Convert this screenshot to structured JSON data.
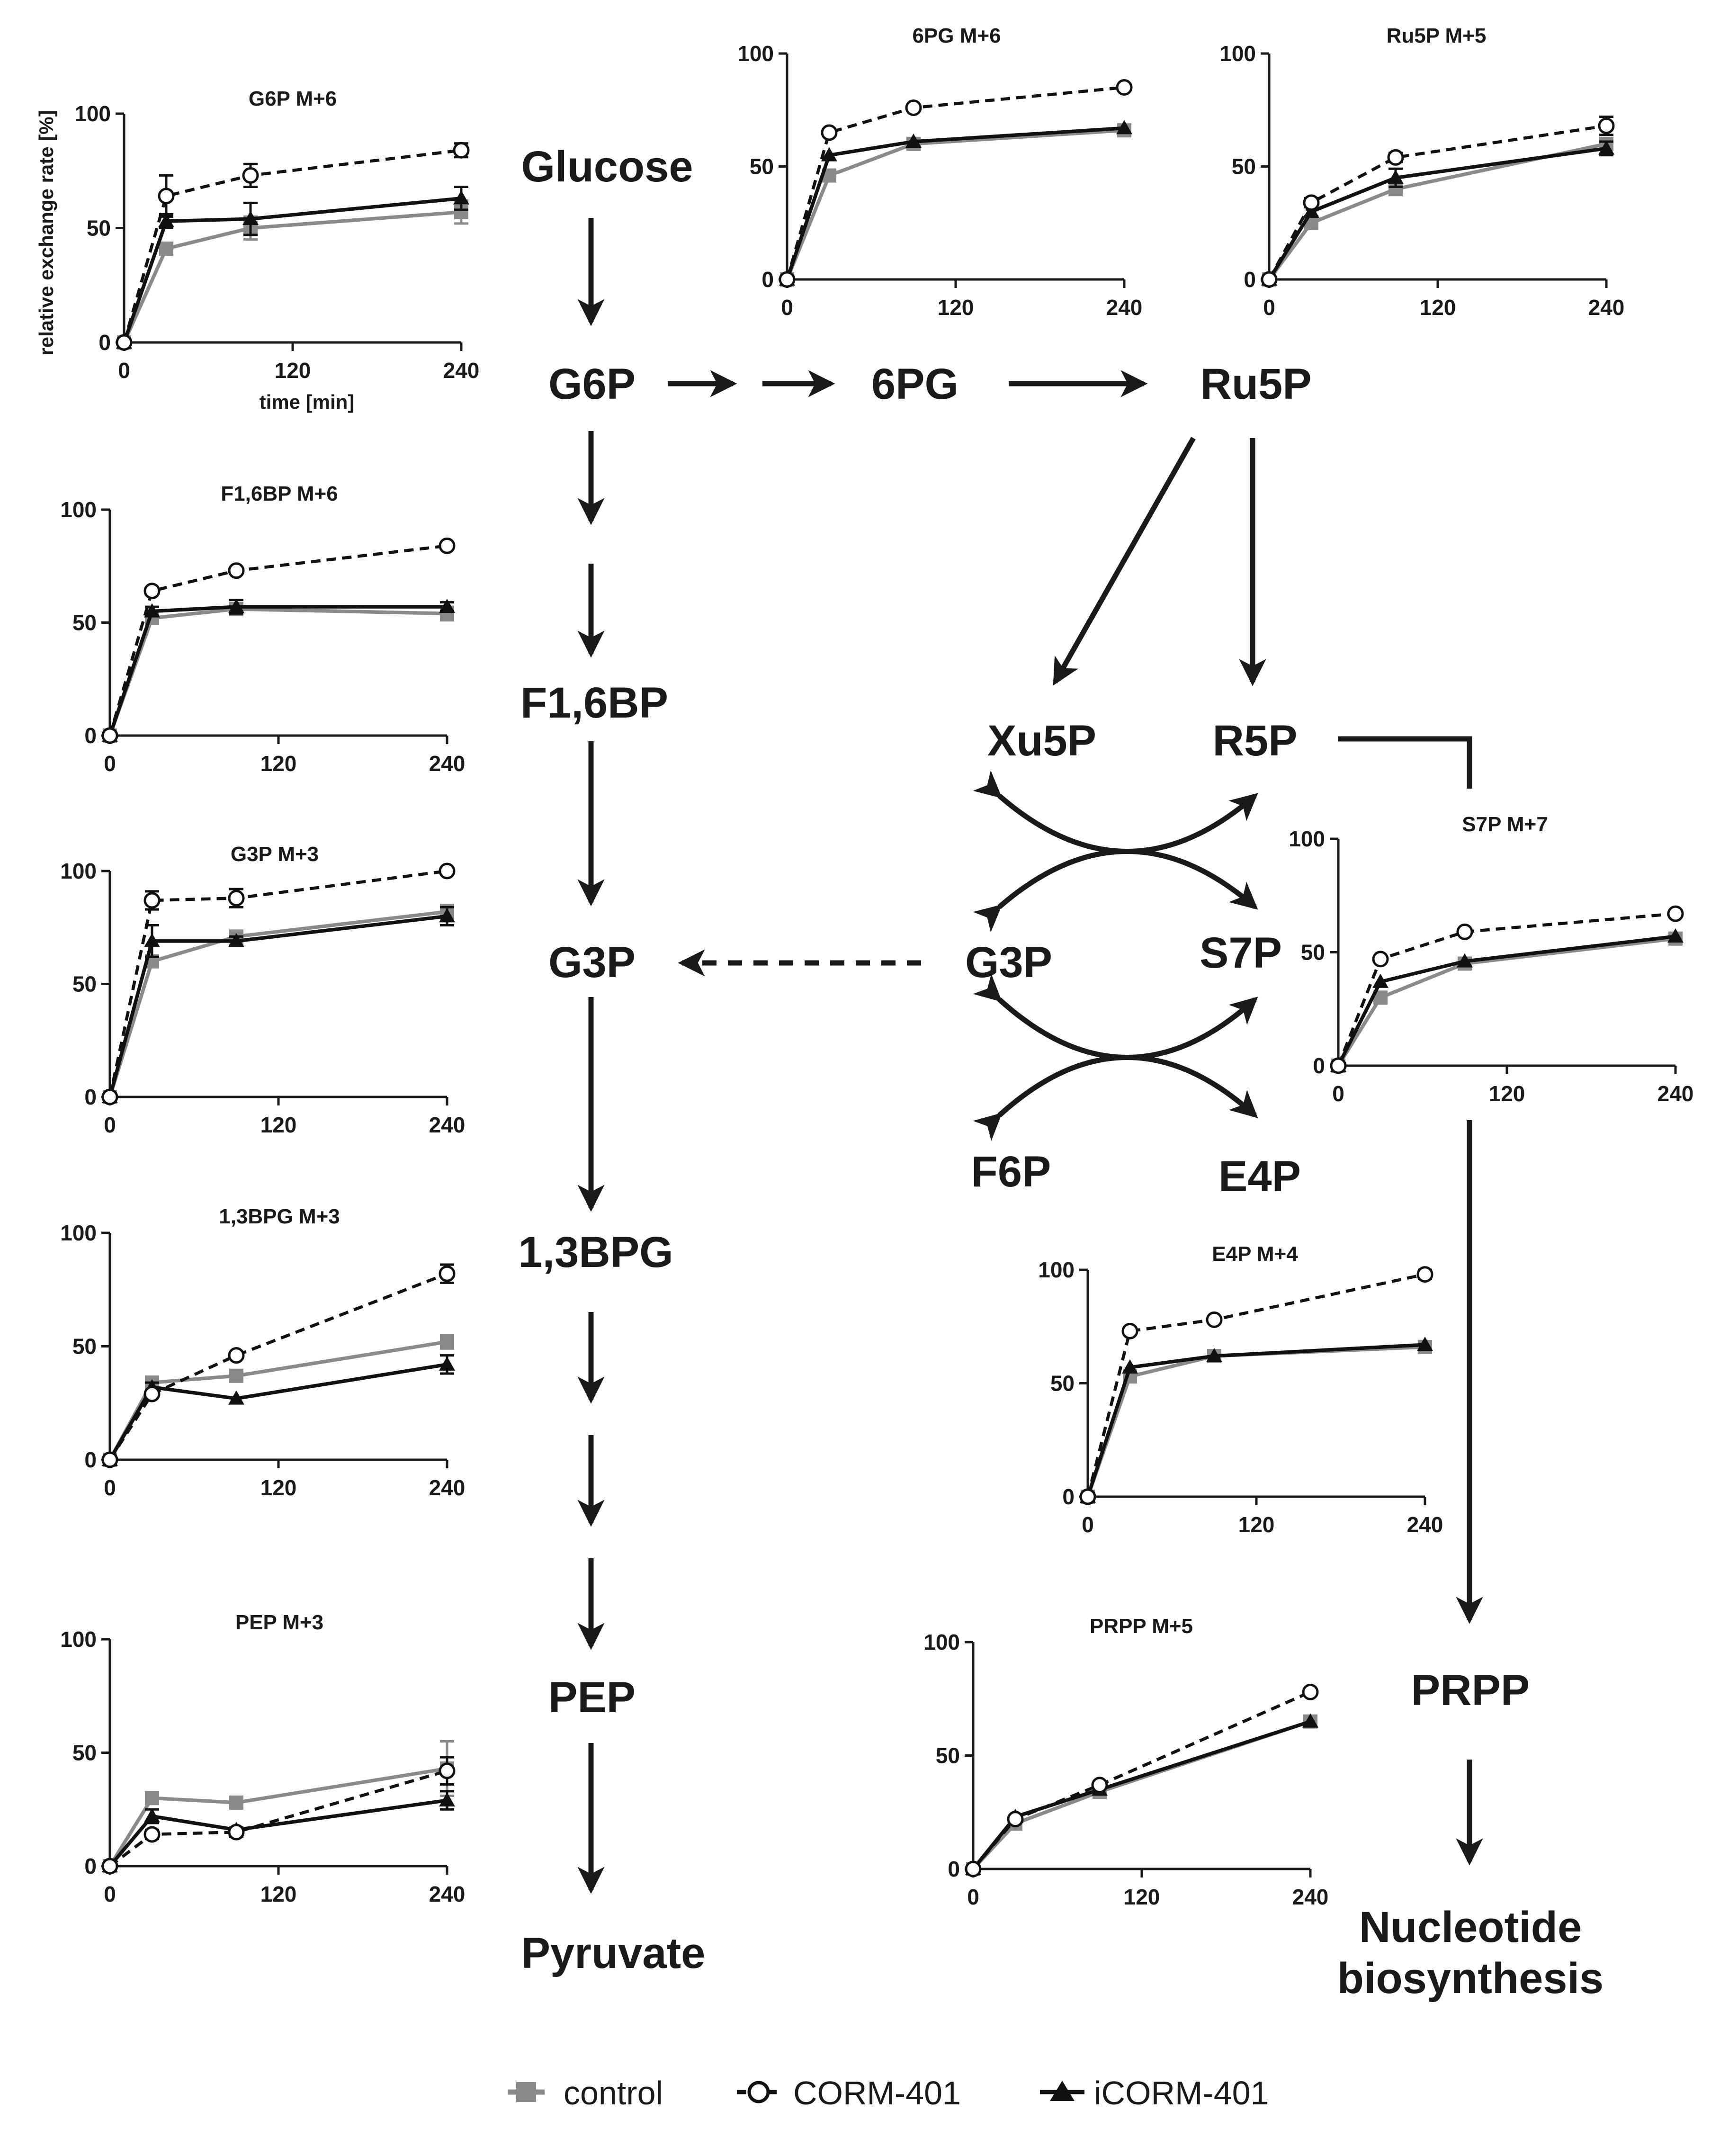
{
  "metabolites": {
    "glucose": "Glucose",
    "g6p": "G6P",
    "pg6": "6PG",
    "ru5p": "Ru5P",
    "f16bp": "F1,6BP",
    "xu5p": "Xu5P",
    "r5p": "R5P",
    "g3p": "G3P",
    "g3p_ppp": "G3P",
    "s7p": "S7P",
    "f6p": "F6P",
    "e4p": "E4P",
    "bpg13": "1,3BPG",
    "pep": "PEP",
    "prpp": "PRPP",
    "pyruvate": "Pyruvate",
    "nucleotide_1": "Nucleotide",
    "nucleotide_2": "biosynthesis"
  },
  "legend": [
    {
      "name": "control",
      "marker": "square",
      "color": "#8a8a8a",
      "dash": "solid"
    },
    {
      "name": "CORM-401",
      "marker": "circle-open",
      "color": "#111111",
      "dash": "dashed"
    },
    {
      "name": "iCORM-401",
      "marker": "triangle",
      "color": "#111111",
      "dash": "solid"
    }
  ],
  "colors": {
    "control": "#8a8a8a",
    "corm": "#111111",
    "icorm": "#111111",
    "ink": "#1a1a1a"
  },
  "chart_data": [
    {
      "id": "g6p",
      "type": "line",
      "title": "G6P  M+6",
      "xlabel": "time [min]",
      "ylabel": "relative exchange rate [%]",
      "x": [
        0,
        30,
        90,
        240
      ],
      "xticks": [
        0,
        120,
        240
      ],
      "yticks": [
        0,
        50,
        100
      ],
      "xlim": [
        0,
        240
      ],
      "ylim": [
        0,
        100
      ],
      "grid": false,
      "series": [
        {
          "name": "control",
          "values": [
            0,
            41,
            50,
            57
          ],
          "errors": [
            0,
            2,
            5,
            5
          ]
        },
        {
          "name": "CORM-401",
          "values": [
            0,
            64,
            73,
            84
          ],
          "errors": [
            0,
            9,
            5,
            3
          ]
        },
        {
          "name": "iCORM-401",
          "values": [
            0,
            53,
            54,
            63
          ],
          "errors": [
            0,
            3,
            7,
            5
          ]
        }
      ]
    },
    {
      "id": "pg6",
      "type": "line",
      "title": "6PG  M+6",
      "x": [
        0,
        30,
        90,
        240
      ],
      "xticks": [
        0,
        120,
        240
      ],
      "yticks": [
        0,
        50,
        100
      ],
      "xlim": [
        0,
        240
      ],
      "ylim": [
        0,
        100
      ],
      "grid": false,
      "series": [
        {
          "name": "control",
          "values": [
            0,
            46,
            60,
            66
          ],
          "errors": [
            0,
            1,
            1,
            1
          ]
        },
        {
          "name": "CORM-401",
          "values": [
            0,
            65,
            76,
            85
          ],
          "errors": [
            0,
            1,
            1,
            1
          ]
        },
        {
          "name": "iCORM-401",
          "values": [
            0,
            55,
            61,
            67
          ],
          "errors": [
            0,
            1,
            1,
            1
          ]
        }
      ]
    },
    {
      "id": "ru5p",
      "type": "line",
      "title": "Ru5P  M+5",
      "x": [
        0,
        30,
        90,
        240
      ],
      "xticks": [
        0,
        120,
        240
      ],
      "yticks": [
        0,
        50,
        100
      ],
      "xlim": [
        0,
        240
      ],
      "ylim": [
        0,
        100
      ],
      "grid": false,
      "series": [
        {
          "name": "control",
          "values": [
            0,
            25,
            40,
            60
          ],
          "errors": [
            0,
            1,
            2,
            2
          ]
        },
        {
          "name": "CORM-401",
          "values": [
            0,
            34,
            54,
            68
          ],
          "errors": [
            0,
            2,
            2,
            4
          ]
        },
        {
          "name": "iCORM-401",
          "values": [
            0,
            30,
            45,
            58
          ],
          "errors": [
            0,
            2,
            4,
            3
          ]
        }
      ]
    },
    {
      "id": "f16bp",
      "type": "line",
      "title": "F1,6BP  M+6",
      "x": [
        0,
        30,
        90,
        240
      ],
      "xticks": [
        0,
        120,
        240
      ],
      "yticks": [
        0,
        50,
        100
      ],
      "xlim": [
        0,
        240
      ],
      "ylim": [
        0,
        100
      ],
      "grid": false,
      "series": [
        {
          "name": "control",
          "values": [
            0,
            52,
            56,
            54
          ],
          "errors": [
            0,
            2,
            2,
            3
          ]
        },
        {
          "name": "CORM-401",
          "values": [
            0,
            64,
            73,
            84
          ],
          "errors": [
            0,
            1,
            1,
            1
          ]
        },
        {
          "name": "iCORM-401",
          "values": [
            0,
            55,
            57,
            57
          ],
          "errors": [
            0,
            2,
            3,
            2
          ]
        }
      ]
    },
    {
      "id": "g3p",
      "type": "line",
      "title": "G3P  M+3",
      "x": [
        0,
        30,
        90,
        240
      ],
      "xticks": [
        0,
        120,
        240
      ],
      "yticks": [
        0,
        50,
        100
      ],
      "xlim": [
        0,
        240
      ],
      "ylim": [
        0,
        100
      ],
      "grid": false,
      "series": [
        {
          "name": "control",
          "values": [
            0,
            60,
            71,
            82
          ],
          "errors": [
            0,
            2,
            2,
            3
          ]
        },
        {
          "name": "CORM-401",
          "values": [
            0,
            87,
            88,
            100
          ],
          "errors": [
            0,
            4,
            4,
            1
          ]
        },
        {
          "name": "iCORM-401",
          "values": [
            0,
            69,
            69,
            80
          ],
          "errors": [
            0,
            7,
            2,
            4
          ]
        }
      ]
    },
    {
      "id": "bpg13",
      "type": "line",
      "title": "1,3BPG M+3",
      "x": [
        0,
        30,
        90,
        240
      ],
      "xticks": [
        0,
        120,
        240
      ],
      "yticks": [
        0,
        50,
        100
      ],
      "xlim": [
        0,
        240
      ],
      "ylim": [
        0,
        100
      ],
      "grid": false,
      "series": [
        {
          "name": "control",
          "values": [
            0,
            34,
            37,
            52
          ],
          "errors": [
            0,
            1,
            1,
            3
          ]
        },
        {
          "name": "CORM-401",
          "values": [
            0,
            29,
            46,
            82
          ],
          "errors": [
            0,
            1,
            1,
            4
          ]
        },
        {
          "name": "iCORM-401",
          "values": [
            0,
            32,
            27,
            42
          ],
          "errors": [
            0,
            2,
            1,
            4
          ]
        }
      ]
    },
    {
      "id": "pep",
      "type": "line",
      "title": "PEP M+3",
      "x": [
        0,
        30,
        90,
        240
      ],
      "xticks": [
        0,
        120,
        240
      ],
      "yticks": [
        0,
        50,
        100
      ],
      "xlim": [
        0,
        240
      ],
      "ylim": [
        0,
        100
      ],
      "grid": false,
      "series": [
        {
          "name": "control",
          "values": [
            0,
            30,
            28,
            43
          ],
          "errors": [
            0,
            1,
            2,
            12
          ]
        },
        {
          "name": "CORM-401",
          "values": [
            0,
            14,
            15,
            42
          ],
          "errors": [
            0,
            2,
            2,
            6
          ]
        },
        {
          "name": "iCORM-401",
          "values": [
            0,
            22,
            16,
            29
          ],
          "errors": [
            0,
            3,
            1,
            4
          ]
        }
      ]
    },
    {
      "id": "s7p",
      "type": "line",
      "title": "S7P M+7",
      "x": [
        0,
        30,
        90,
        240
      ],
      "xticks": [
        0,
        120,
        240
      ],
      "yticks": [
        0,
        50,
        100
      ],
      "xlim": [
        0,
        240
      ],
      "ylim": [
        0,
        100
      ],
      "grid": false,
      "series": [
        {
          "name": "control",
          "values": [
            0,
            30,
            45,
            56
          ],
          "errors": [
            0,
            1,
            1,
            1
          ]
        },
        {
          "name": "CORM-401",
          "values": [
            0,
            47,
            59,
            67
          ],
          "errors": [
            0,
            1,
            1,
            1
          ]
        },
        {
          "name": "iCORM-401",
          "values": [
            0,
            37,
            46,
            57
          ],
          "errors": [
            0,
            1,
            1,
            1
          ]
        }
      ]
    },
    {
      "id": "e4p",
      "type": "line",
      "title": "E4P M+4",
      "x": [
        0,
        30,
        90,
        240
      ],
      "xticks": [
        0,
        120,
        240
      ],
      "yticks": [
        0,
        50,
        100
      ],
      "xlim": [
        0,
        240
      ],
      "ylim": [
        0,
        100
      ],
      "grid": false,
      "series": [
        {
          "name": "control",
          "values": [
            0,
            53,
            62,
            66
          ],
          "errors": [
            0,
            1,
            1,
            1
          ]
        },
        {
          "name": "CORM-401",
          "values": [
            0,
            73,
            78,
            98
          ],
          "errors": [
            0,
            1,
            1,
            2
          ]
        },
        {
          "name": "iCORM-401",
          "values": [
            0,
            57,
            62,
            67
          ],
          "errors": [
            0,
            1,
            1,
            1
          ]
        }
      ]
    },
    {
      "id": "prpp",
      "type": "line",
      "title": "PRPP M+5",
      "x": [
        0,
        30,
        90,
        240
      ],
      "xticks": [
        0,
        120,
        240
      ],
      "yticks": [
        0,
        50,
        100
      ],
      "xlim": [
        0,
        240
      ],
      "ylim": [
        0,
        100
      ],
      "grid": false,
      "series": [
        {
          "name": "control",
          "values": [
            0,
            20,
            34,
            65
          ],
          "errors": [
            0,
            1,
            1,
            1
          ]
        },
        {
          "name": "CORM-401",
          "values": [
            0,
            22,
            37,
            78
          ],
          "errors": [
            0,
            1,
            1,
            1
          ]
        },
        {
          "name": "iCORM-401",
          "values": [
            0,
            23,
            35,
            65
          ],
          "errors": [
            0,
            1,
            1,
            1
          ]
        }
      ]
    }
  ]
}
